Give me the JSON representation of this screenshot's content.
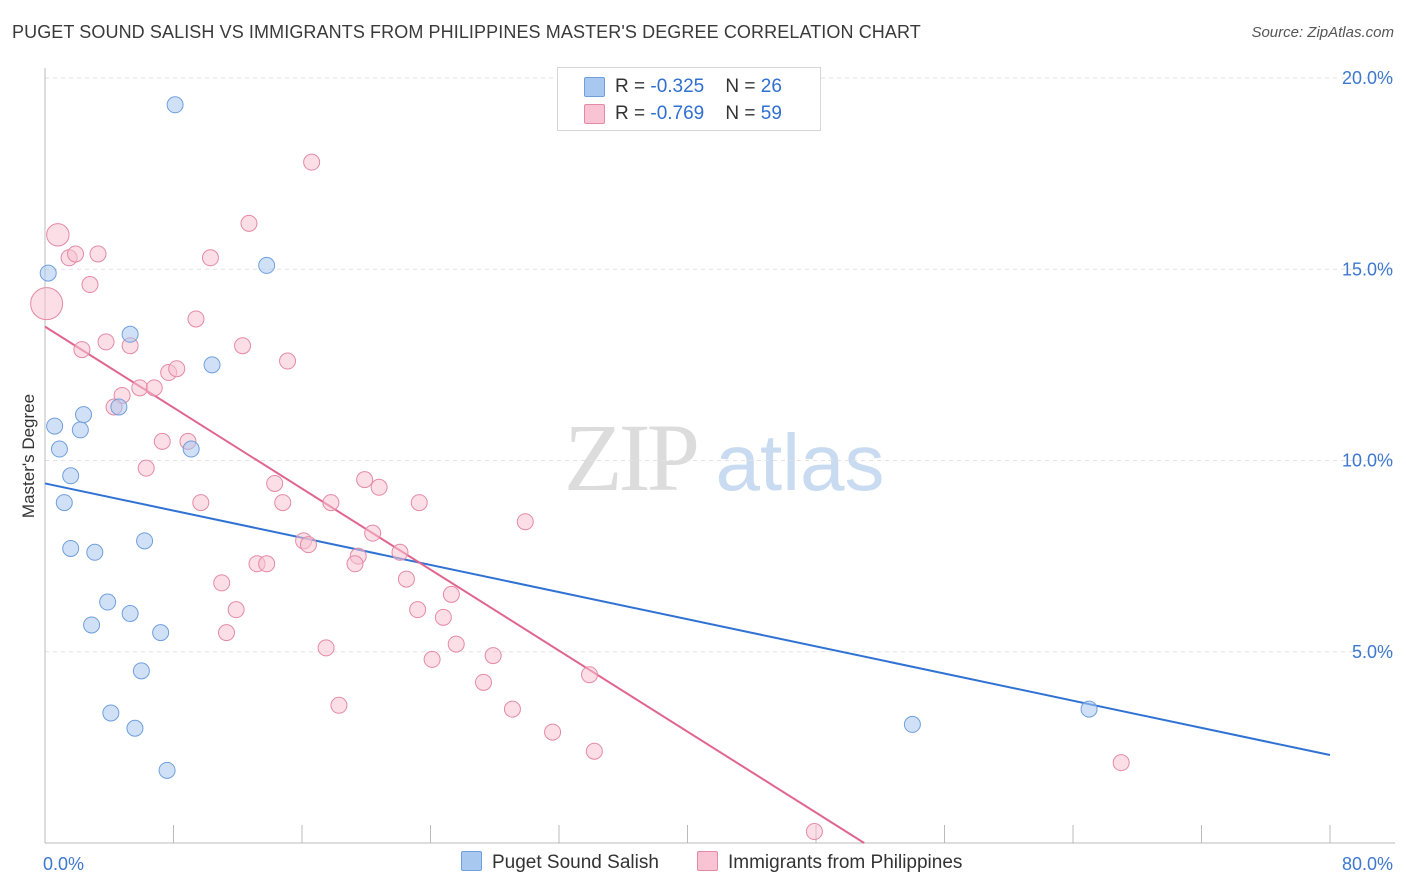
{
  "title": "PUGET SOUND SALISH VS IMMIGRANTS FROM PHILIPPINES MASTER'S DEGREE CORRELATION CHART",
  "source": "Source: ZipAtlas.com",
  "watermark": {
    "zip": "ZIP",
    "atlas": "atlas"
  },
  "legend": {
    "rows": [
      {
        "r_label": "R = ",
        "r_value": "-0.325",
        "n_label": "N = ",
        "n_value": "26",
        "color": "#a9c8f0",
        "border": "#6f9fdc"
      },
      {
        "r_label": "R = ",
        "r_value": "-0.769",
        "n_label": "N = ",
        "n_value": "59",
        "color": "#f8c3d2",
        "border": "#e48aa6"
      }
    ]
  },
  "bottom_legend": [
    "Puget Sound Salish",
    "Immigrants from Philippines"
  ],
  "chart_data": {
    "type": "scatter",
    "title": "PUGET SOUND SALISH VS IMMIGRANTS FROM PHILIPPINES MASTER'S DEGREE CORRELATION CHART",
    "xlabel": "",
    "ylabel": "Master's Degree",
    "xlim": [
      0,
      80
    ],
    "ylim": [
      0,
      20
    ],
    "x_tick_labels": [
      "0.0%",
      "80.0%"
    ],
    "y_ticks": [
      5,
      10,
      15,
      20
    ],
    "y_tick_labels": [
      "5.0%",
      "10.0%",
      "15.0%",
      "20.0%"
    ],
    "grid": true,
    "series": [
      {
        "name": "Puget Sound Salish",
        "color": "#a9c8f0",
        "stroke": "#6f9fdc",
        "line_color": "#2f72d3",
        "trend": {
          "x": [
            0,
            80
          ],
          "y": [
            9.4,
            2.3
          ]
        },
        "points": [
          {
            "x": 0.2,
            "y": 14.9,
            "s": 1
          },
          {
            "x": 8.1,
            "y": 19.3,
            "s": 1
          },
          {
            "x": 13.8,
            "y": 15.1,
            "s": 1
          },
          {
            "x": 0.6,
            "y": 10.9,
            "s": 1
          },
          {
            "x": 0.9,
            "y": 10.3,
            "s": 1
          },
          {
            "x": 1.2,
            "y": 8.9,
            "s": 1
          },
          {
            "x": 1.6,
            "y": 9.6,
            "s": 1
          },
          {
            "x": 2.2,
            "y": 10.8,
            "s": 1
          },
          {
            "x": 2.4,
            "y": 11.2,
            "s": 1
          },
          {
            "x": 4.6,
            "y": 11.4,
            "s": 1
          },
          {
            "x": 5.3,
            "y": 13.3,
            "s": 1
          },
          {
            "x": 10.4,
            "y": 12.5,
            "s": 1
          },
          {
            "x": 9.1,
            "y": 10.3,
            "s": 1
          },
          {
            "x": 1.6,
            "y": 7.7,
            "s": 1
          },
          {
            "x": 3.1,
            "y": 7.6,
            "s": 1
          },
          {
            "x": 6.2,
            "y": 7.9,
            "s": 1
          },
          {
            "x": 3.9,
            "y": 6.3,
            "s": 1
          },
          {
            "x": 5.3,
            "y": 6.0,
            "s": 1
          },
          {
            "x": 2.9,
            "y": 5.7,
            "s": 1
          },
          {
            "x": 7.2,
            "y": 5.5,
            "s": 1
          },
          {
            "x": 6.0,
            "y": 4.5,
            "s": 1
          },
          {
            "x": 4.1,
            "y": 3.4,
            "s": 1
          },
          {
            "x": 5.6,
            "y": 3.0,
            "s": 1
          },
          {
            "x": 7.6,
            "y": 1.9,
            "s": 1
          },
          {
            "x": 54.0,
            "y": 3.1,
            "s": 1
          },
          {
            "x": 65.0,
            "y": 3.5,
            "s": 1
          }
        ]
      },
      {
        "name": "Immigrants from Philippines",
        "color": "#f8c3d2",
        "stroke": "#e48aa6",
        "line_color": "#e0658f",
        "trend": {
          "x": [
            0,
            51
          ],
          "y": [
            13.5,
            0
          ]
        },
        "points": [
          {
            "x": 0.1,
            "y": 14.1,
            "s": 2
          },
          {
            "x": 0.8,
            "y": 15.9,
            "s": 1.4
          },
          {
            "x": 1.5,
            "y": 15.3,
            "s": 1
          },
          {
            "x": 1.9,
            "y": 15.4,
            "s": 1
          },
          {
            "x": 3.3,
            "y": 15.4,
            "s": 1
          },
          {
            "x": 2.8,
            "y": 14.6,
            "s": 1
          },
          {
            "x": 12.7,
            "y": 16.2,
            "s": 1
          },
          {
            "x": 16.6,
            "y": 17.8,
            "s": 1
          },
          {
            "x": 10.3,
            "y": 15.3,
            "s": 1
          },
          {
            "x": 9.4,
            "y": 13.7,
            "s": 1
          },
          {
            "x": 2.3,
            "y": 12.9,
            "s": 1
          },
          {
            "x": 3.8,
            "y": 13.1,
            "s": 1
          },
          {
            "x": 5.3,
            "y": 13.0,
            "s": 1
          },
          {
            "x": 12.3,
            "y": 13.0,
            "s": 1
          },
          {
            "x": 15.1,
            "y": 12.6,
            "s": 1
          },
          {
            "x": 7.7,
            "y": 12.3,
            "s": 1
          },
          {
            "x": 8.2,
            "y": 12.4,
            "s": 1
          },
          {
            "x": 4.8,
            "y": 11.7,
            "s": 1
          },
          {
            "x": 5.9,
            "y": 11.9,
            "s": 1
          },
          {
            "x": 6.8,
            "y": 11.9,
            "s": 1
          },
          {
            "x": 4.3,
            "y": 11.4,
            "s": 1
          },
          {
            "x": 7.3,
            "y": 10.5,
            "s": 1
          },
          {
            "x": 8.9,
            "y": 10.5,
            "s": 1
          },
          {
            "x": 6.3,
            "y": 9.8,
            "s": 1
          },
          {
            "x": 14.3,
            "y": 9.4,
            "s": 1
          },
          {
            "x": 19.9,
            "y": 9.5,
            "s": 1
          },
          {
            "x": 20.8,
            "y": 9.3,
            "s": 1
          },
          {
            "x": 9.7,
            "y": 8.9,
            "s": 1
          },
          {
            "x": 14.8,
            "y": 8.9,
            "s": 1
          },
          {
            "x": 17.8,
            "y": 8.9,
            "s": 1
          },
          {
            "x": 23.3,
            "y": 8.9,
            "s": 1
          },
          {
            "x": 29.9,
            "y": 8.4,
            "s": 1
          },
          {
            "x": 20.4,
            "y": 8.1,
            "s": 1
          },
          {
            "x": 16.1,
            "y": 7.9,
            "s": 1
          },
          {
            "x": 16.4,
            "y": 7.8,
            "s": 1
          },
          {
            "x": 19.5,
            "y": 7.5,
            "s": 1
          },
          {
            "x": 22.1,
            "y": 7.6,
            "s": 1
          },
          {
            "x": 13.2,
            "y": 7.3,
            "s": 1
          },
          {
            "x": 13.8,
            "y": 7.3,
            "s": 1
          },
          {
            "x": 19.3,
            "y": 7.3,
            "s": 1
          },
          {
            "x": 11.0,
            "y": 6.8,
            "s": 1
          },
          {
            "x": 22.5,
            "y": 6.9,
            "s": 1
          },
          {
            "x": 25.3,
            "y": 6.5,
            "s": 1
          },
          {
            "x": 11.9,
            "y": 6.1,
            "s": 1
          },
          {
            "x": 23.2,
            "y": 6.1,
            "s": 1
          },
          {
            "x": 24.8,
            "y": 5.9,
            "s": 1
          },
          {
            "x": 11.3,
            "y": 5.5,
            "s": 1
          },
          {
            "x": 25.6,
            "y": 5.2,
            "s": 1
          },
          {
            "x": 17.5,
            "y": 5.1,
            "s": 1
          },
          {
            "x": 27.9,
            "y": 4.9,
            "s": 1
          },
          {
            "x": 24.1,
            "y": 4.8,
            "s": 1
          },
          {
            "x": 33.9,
            "y": 4.4,
            "s": 1
          },
          {
            "x": 27.3,
            "y": 4.2,
            "s": 1
          },
          {
            "x": 18.3,
            "y": 3.6,
            "s": 1
          },
          {
            "x": 29.1,
            "y": 3.5,
            "s": 1
          },
          {
            "x": 31.6,
            "y": 2.9,
            "s": 1
          },
          {
            "x": 34.2,
            "y": 2.4,
            "s": 1
          },
          {
            "x": 67.0,
            "y": 2.1,
            "s": 1
          },
          {
            "x": 47.9,
            "y": 0.3,
            "s": 1
          }
        ]
      }
    ]
  }
}
